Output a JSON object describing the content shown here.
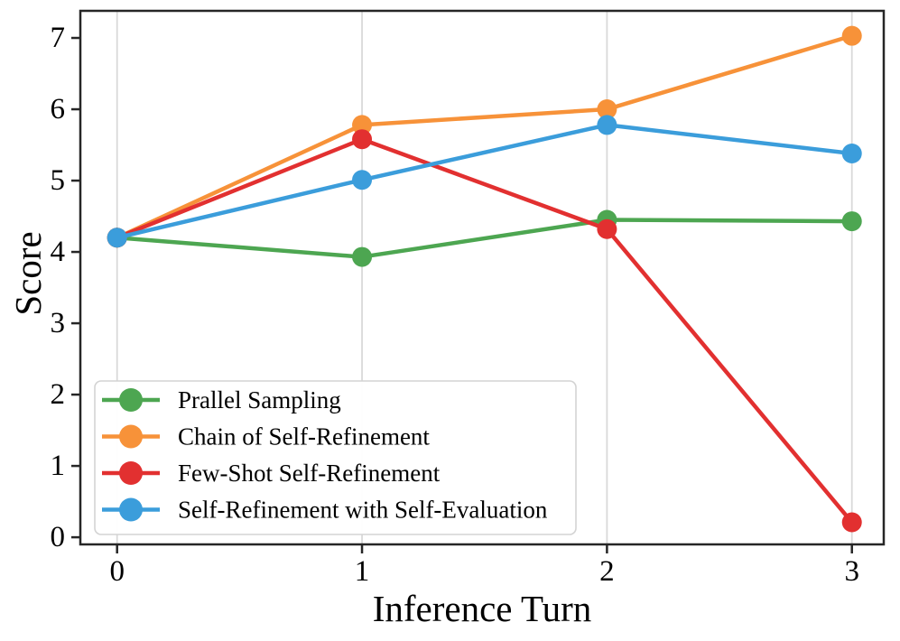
{
  "chart_data": {
    "type": "line",
    "title": "",
    "xlabel": "Inference Turn",
    "ylabel": "Score",
    "x": [
      0,
      1,
      2,
      3
    ],
    "x_ticks": [
      "0",
      "1",
      "2",
      "3"
    ],
    "y_tick_values": [
      0,
      1,
      2,
      3,
      4,
      5,
      6,
      7
    ],
    "y_ticks": [
      "0",
      "1",
      "2",
      "3",
      "4",
      "5",
      "6",
      "7"
    ],
    "xlim": [
      -0.15,
      3.13
    ],
    "ylim": [
      -0.1,
      7.38
    ],
    "grid": "vertical-only",
    "legend_position": "lower-left",
    "series": [
      {
        "name": "Prallel Sampling",
        "color": "#4DA651",
        "values": [
          4.2,
          3.93,
          4.45,
          4.43
        ]
      },
      {
        "name": "Chain of Self-Refinement",
        "color": "#F79239",
        "values": [
          4.2,
          5.78,
          6.0,
          7.03
        ]
      },
      {
        "name": "Few-Shot Self-Refinement",
        "color": "#E23030",
        "values": [
          4.2,
          5.58,
          4.32,
          0.21
        ]
      },
      {
        "name": "Self-Refinement with Self-Evaluation",
        "color": "#3B9DDB",
        "values": [
          4.2,
          5.01,
          5.78,
          5.38
        ]
      }
    ]
  },
  "colors": {
    "background": "#ffffff",
    "grid": "#d9d9d9",
    "spine": "#262626",
    "tick": "#262626",
    "text": "#000000",
    "legend_border": "#d3d3d3",
    "legend_background": "#ffffff"
  }
}
